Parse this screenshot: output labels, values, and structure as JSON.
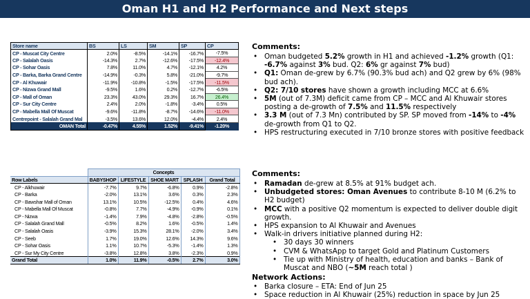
{
  "title": "Oman H1 and H2 Performance and Next steps",
  "table1": {
    "headers": [
      "Store name",
      "BS",
      "LS",
      "SM",
      "SP",
      "CP"
    ],
    "rows": [
      {
        "name": "CP - Muscat City Centre",
        "bs": "2.0%",
        "ls": "-8.5%",
        "sm": "-14.1%",
        "sp": "-16.7%",
        "cp": "-7.5%",
        "cp_color": ""
      },
      {
        "name": "CP - Salalah Oasis",
        "bs": "-14.3%",
        "ls": "2.7%",
        "sm": "-12.6%",
        "sp": "-17.5%",
        "cp": "-12.4%",
        "cp_color": "red"
      },
      {
        "name": "CP - Sohar Oasis",
        "bs": "7.8%",
        "ls": "11.0%",
        "sm": "4.7%",
        "sp": "-12.1%",
        "cp": "4.2%",
        "cp_color": ""
      },
      {
        "name": "CP - Barka, Barka Grand Centre",
        "bs": "-14.9%",
        "ls": "-0.3%",
        "sm": "5.8%",
        "sp": "-21.0%",
        "cp": "-9.7%",
        "cp_color": ""
      },
      {
        "name": "CP - Al Khuwair",
        "bs": "-11.9%",
        "ls": "-10.8%",
        "sm": "-1.5%",
        "sp": "-17.5%",
        "cp": "-11.5%",
        "cp_color": "red"
      },
      {
        "name": "CP - Nizwa Grand Mall",
        "bs": "-9.5%",
        "ls": "1.6%",
        "sm": "0.2%",
        "sp": "-12.7%",
        "cp": "-6.5%",
        "cp_color": ""
      },
      {
        "name": "CP - Mall of Oman",
        "bs": "23.3%",
        "ls": "43.0%",
        "sm": "29.3%",
        "sp": "16.7%",
        "cp": "26.4%",
        "cp_color": "green"
      },
      {
        "name": "CP - Sur City Centre",
        "bs": "2.4%",
        "ls": "2.0%",
        "sm": "-1.8%",
        "sp": "-3.4%",
        "cp": "0.5%",
        "cp_color": ""
      },
      {
        "name": "CP - Mabella Mall Of Muscat",
        "bs": "-9.6%",
        "ls": "-11.8%",
        "sm": "-8.7%",
        "sp": "-14.6%",
        "cp": "-11.0%",
        "cp_color": "red"
      },
      {
        "name": "Centrepoint - Salalah Grand Mal",
        "bs": "-3.5%",
        "ls": "13.6%",
        "sm": "12.0%",
        "sp": "-4.4%",
        "cp": "2.4%",
        "cp_color": ""
      }
    ],
    "total": {
      "name": "OMAN Total",
      "bs": "-0.47%",
      "ls": "4.55%",
      "sm": "1.52%",
      "sp": "-9.41%",
      "cp": "-1.20%"
    }
  },
  "table2": {
    "group_header": "Concepts",
    "row_label_header": "Row Labels",
    "headers": [
      "BABYSHOP",
      "LIFESTYLE",
      "SHOE MART",
      "SPLASH",
      "Grand Total"
    ],
    "rows": [
      {
        "name": "CP - Alkhuwair",
        "v": [
          "-7.7%",
          "9.7%",
          "-6.8%",
          "0.9%",
          "-2.8%"
        ]
      },
      {
        "name": "CP - Barka",
        "v": [
          "-2.0%",
          "13.1%",
          "3.6%",
          "0.3%",
          "2.3%"
        ]
      },
      {
        "name": "CP - Bawshar Mall of Oman",
        "v": [
          "13.1%",
          "10.5%",
          "-12.5%",
          "0.4%",
          "4.6%"
        ]
      },
      {
        "name": "CP - Mabella Mall Of Muscat",
        "v": [
          "-0.8%",
          "7.7%",
          "-4.9%",
          "-0.9%",
          "0.1%"
        ]
      },
      {
        "name": "CP - Nizwa",
        "v": [
          "-1.4%",
          "7.9%",
          "-4.8%",
          "-2.8%",
          "-0.5%"
        ]
      },
      {
        "name": "CP - Salalah Grand Mall",
        "v": [
          "-0.5%",
          "8.2%",
          "1.6%",
          "-0.5%",
          "1.4%"
        ]
      },
      {
        "name": "CP - Salalah Oasis",
        "v": [
          "-3.9%",
          "15.3%",
          "28.1%",
          "-2.0%",
          "3.4%"
        ]
      },
      {
        "name": "CP - Seeb",
        "v": [
          "1.7%",
          "19.0%",
          "12.6%",
          "14.3%",
          "9.6%"
        ]
      },
      {
        "name": "CP - Sohar Oasis",
        "v": [
          "1.1%",
          "10.7%",
          "-5.3%",
          "-1.4%",
          "1.3%"
        ]
      },
      {
        "name": "CP - Sur My City Centre",
        "v": [
          "-3.8%",
          "12.8%",
          "3.8%",
          "-2.3%",
          "0.9%"
        ]
      }
    ],
    "total": {
      "name": "Grand Total",
      "v": [
        "1.0%",
        "11.9%",
        "-0.5%",
        "2.7%",
        "3.0%"
      ]
    }
  },
  "comments1": {
    "heading": "Comments:",
    "items": [
      "Oman budgeted <b>5.2%</b> growth in H1 and achieved <b>-1.2%</b> growth (Q1: <b>-6.7%</b> against <b>3%</b> bud. Q2: <b>6%</b> gr against <b>7%</b> bud)",
      "<b>Q1:</b> Oman de-grew by 6.7% (90.3% bud ach) and Q2 grew by 6% (98% bud ach).",
      "<b>Q2: 7/10 stores</b> have shown a growth including MCC at 6.6%",
      "<b>5M</b> (out of 7.3M) deficit came from CP – MCC and Al Khuwair stores posting a de-growth of <b>7.5%</b> and <b>11.5%</b> respectively",
      "<b>3.3 M</b> (out of 7.3 Mn) contributed by SP. SP moved from <b>-14%</b> to <b>-4%</b> de-growth from Q1 to Q2.",
      "HPS restructuring executed in 7/10 bronze stores with positive feedback"
    ]
  },
  "comments2": {
    "heading": "Comments:",
    "items": [
      {
        "text": "<b>Ramadan</b> de-grew at 8.5% at 91% budget ach.",
        "sub": false
      },
      {
        "text": "<b>Unbudgeted stores: Oman Avenues</b> to contribute 8-10 M (6.2% to H2 budget)",
        "sub": false
      },
      {
        "text": "<b>MCC</b> with a positive Q2 momentum is expected to deliver double digit growth.",
        "sub": false
      },
      {
        "text": "HPS expansion to Al Khuwair and Avenues",
        "sub": false
      },
      {
        "text": "Walk-in drivers initiative planned during H2:",
        "sub": false
      },
      {
        "text": "30 days 30 winners",
        "sub": true
      },
      {
        "text": "CVM &amp; WhatsApp to target Gold and Platinum Customers",
        "sub": true
      },
      {
        "text": "Tie up with Ministry of health, education and banks – Bank of Muscat and NBO (<b>~5M</b> reach total )",
        "sub": true
      }
    ],
    "network_heading": "Network Actions:",
    "network_items": [
      "Barka closure – ETA: End of Jun 25",
      "Space reduction in Al Khuwair (25%) reduction in space by Jun 25"
    ]
  }
}
